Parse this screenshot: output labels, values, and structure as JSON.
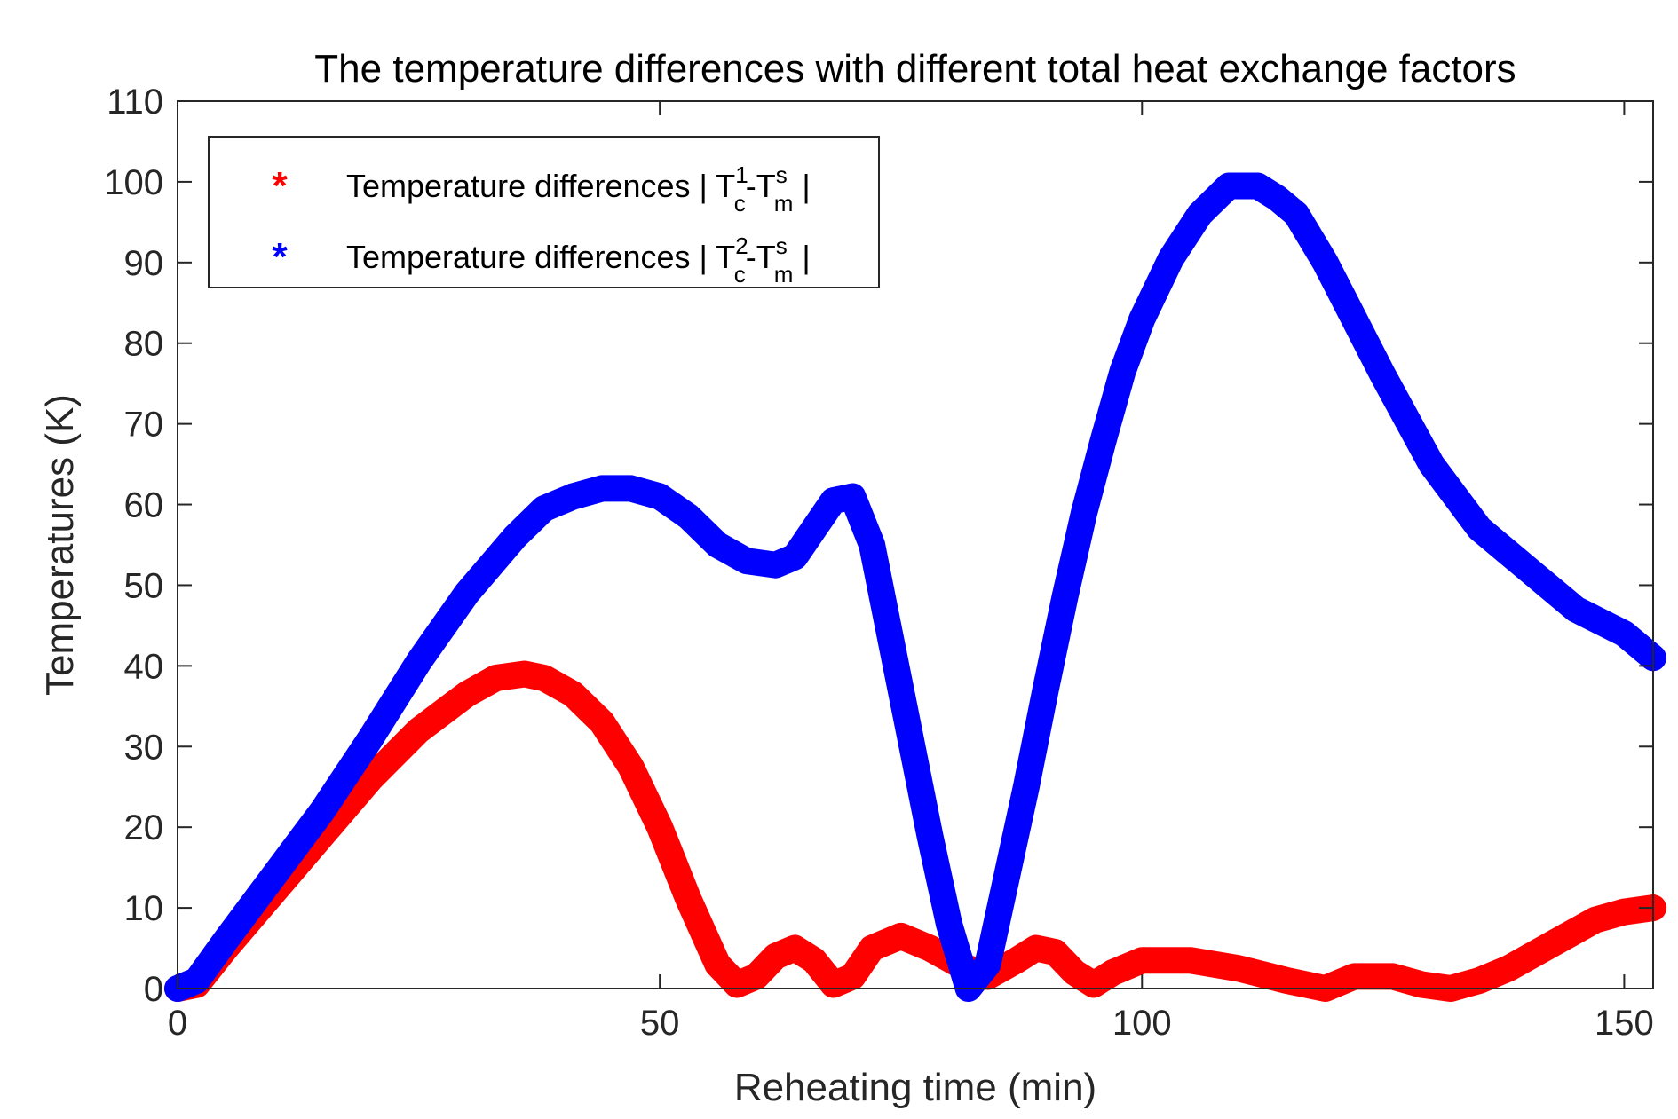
{
  "chart_data": {
    "type": "line",
    "title": "The temperature differences with different total heat exchange factors",
    "xlabel": "Reheating time (min)",
    "ylabel": "Temperatures (K)",
    "xlim": [
      0,
      153
    ],
    "ylim": [
      0,
      110
    ],
    "xticks": [
      0,
      50,
      100,
      150
    ],
    "yticks": [
      0,
      10,
      20,
      30,
      40,
      50,
      60,
      70,
      80,
      90,
      100,
      110
    ],
    "legend_position": "top-left",
    "series": [
      {
        "name": "Temperature differences | T_c^1-T_m^s |",
        "legend": {
          "prefix": "Temperature differences | T",
          "sup": "1",
          "sub": "c",
          "mid": "-T",
          "sup2": "s",
          "sub2": "m",
          "suffix": " |"
        },
        "color": "#ff0000",
        "marker": "*",
        "x": [
          0,
          2,
          5,
          10,
          15,
          20,
          25,
          30,
          33,
          36,
          38,
          41,
          44,
          47,
          50,
          53,
          56,
          58,
          60,
          62,
          64,
          66,
          68,
          70,
          72,
          75,
          78,
          81,
          84,
          87,
          89,
          91,
          93,
          95,
          97,
          100,
          105,
          110,
          115,
          119,
          122,
          126,
          129,
          132,
          135,
          138,
          141,
          144,
          147,
          150,
          153
        ],
        "y": [
          0,
          0.5,
          5,
          12,
          19,
          26,
          32,
          36.5,
          38.5,
          39,
          38.5,
          36.5,
          33,
          27.5,
          20,
          11,
          3,
          0.5,
          1.5,
          4,
          5,
          3.5,
          0.5,
          1.5,
          5,
          6.5,
          5,
          3,
          1.5,
          3.5,
          5,
          4.5,
          2,
          0.5,
          2,
          3.5,
          3.5,
          2.5,
          1,
          0,
          1.5,
          1.5,
          0.5,
          0,
          1,
          2.5,
          4.5,
          6.5,
          8.5,
          9.5,
          10
        ]
      },
      {
        "name": "Temperature differences | T_c^2-T_m^s |",
        "legend": {
          "prefix": "Temperature differences | T",
          "sup": "2",
          "sub": "c",
          "mid": "-T",
          "sup2": "s",
          "sub2": "m",
          "suffix": " |"
        },
        "color": "#0000ff",
        "marker": "*",
        "x": [
          0,
          2,
          5,
          10,
          15,
          20,
          25,
          30,
          35,
          38,
          41,
          44,
          47,
          50,
          53,
          56,
          59,
          62,
          64,
          66,
          68,
          70,
          72,
          74,
          76,
          78,
          80,
          82,
          84,
          86,
          88,
          90,
          92,
          94,
          96,
          98,
          100,
          103,
          106,
          109,
          112,
          114,
          116,
          119,
          122,
          125,
          130,
          135,
          140,
          145,
          150,
          153
        ],
        "y": [
          0,
          1,
          6,
          14,
          22,
          31,
          40.5,
          49,
          56,
          59.5,
          61,
          62,
          62,
          61,
          58.5,
          55,
          53,
          52.5,
          53.5,
          57,
          60.5,
          61,
          55,
          43,
          31,
          19,
          8,
          0,
          3,
          14,
          25,
          37,
          48.5,
          59,
          68,
          76.5,
          83,
          90.5,
          96,
          99.5,
          99.5,
          98,
          96,
          90,
          83,
          76,
          65,
          57,
          52,
          47,
          44,
          41
        ]
      }
    ]
  }
}
